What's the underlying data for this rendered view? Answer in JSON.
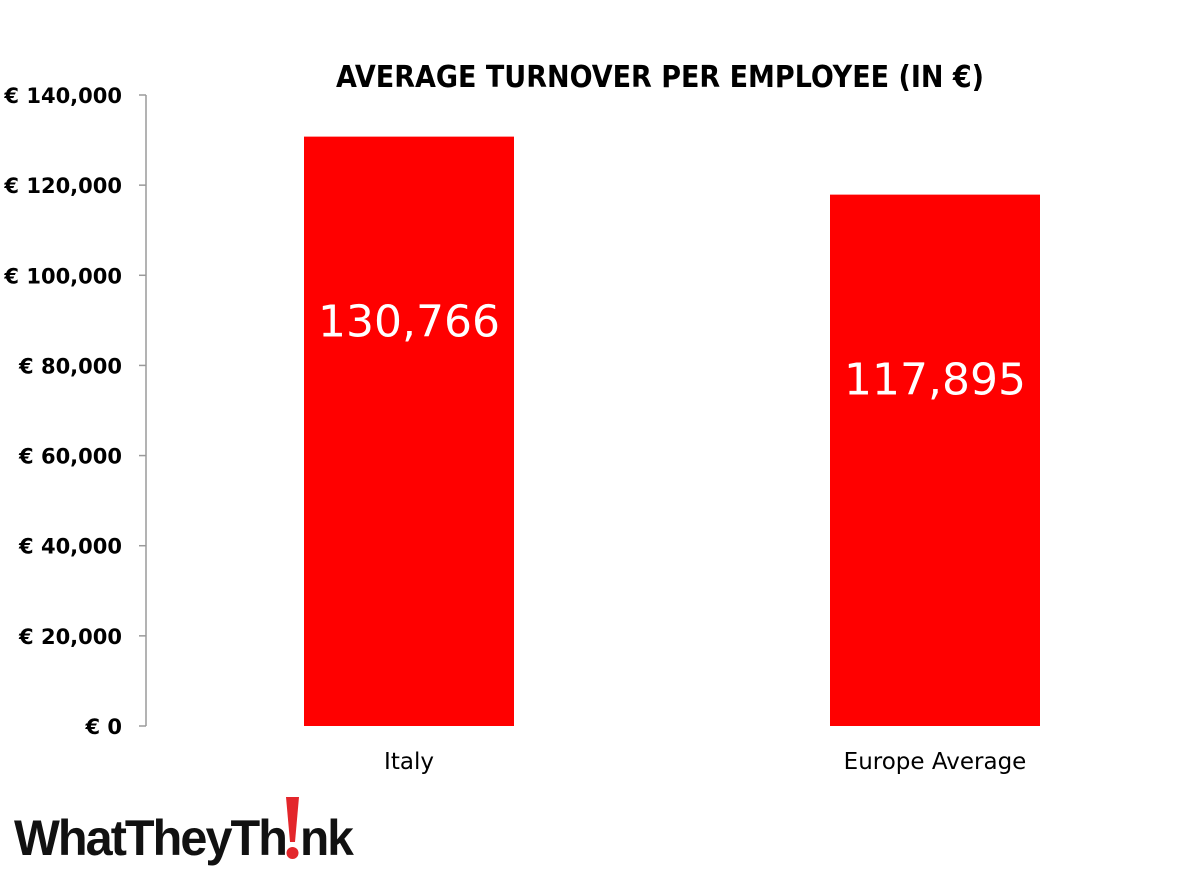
{
  "chart_data": {
    "type": "bar",
    "title": "AVERAGE TURNOVER PER EMPLOYEE (IN €)",
    "categories": [
      "Italy",
      "Europe Average"
    ],
    "values": [
      130766,
      117895
    ],
    "data_labels": [
      "130,766",
      "117,895"
    ],
    "xlabel": "",
    "ylabel": "",
    "ylim": [
      0,
      140000
    ],
    "y_ticks": [
      0,
      20000,
      40000,
      60000,
      80000,
      100000,
      120000,
      140000
    ],
    "y_tick_labels": [
      "€ 0",
      "€ 20,000",
      "€ 40,000",
      "€ 60,000",
      "€ 80,000",
      "€ 100,000",
      "€ 120,000",
      "€ 140,000"
    ],
    "grid": false,
    "legend": "none",
    "bar_color": "#ff0000",
    "data_label_color": "#ffffff"
  },
  "logo": {
    "text_start": "WhatTheyTh",
    "text_end": "nk",
    "accent_color": "#e3262b"
  }
}
